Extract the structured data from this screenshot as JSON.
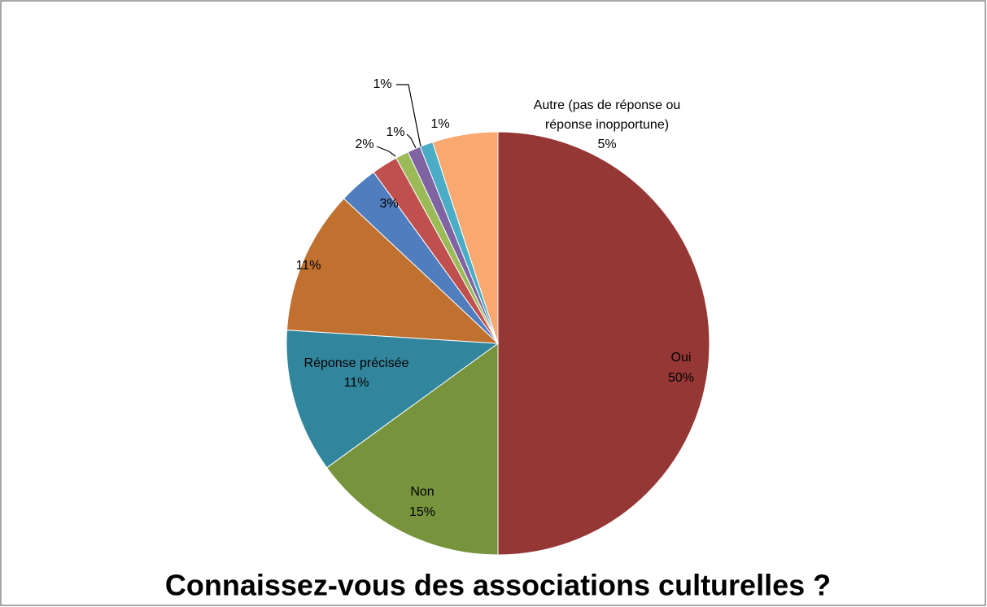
{
  "chart_data": {
    "type": "pie",
    "title": "Connaissez-vous des associations culturelles ?",
    "categories": [
      "Oui",
      "Non",
      "Réponse précisée",
      null,
      null,
      null,
      null,
      null,
      null,
      "Autre (pas de réponse ou réponse inopportune)"
    ],
    "values": [
      50,
      15,
      11,
      11,
      3,
      2,
      1,
      1,
      1,
      5
    ],
    "value_labels": [
      "50%",
      "15%",
      "11%",
      "11%",
      "3%",
      "2%",
      "1%",
      "1%",
      "1%",
      "5%"
    ],
    "colors": [
      "#953735",
      "#77933c",
      "#31859c",
      "#c0702f",
      "#4f7dbd",
      "#c0504d",
      "#9bbb59",
      "#8064a2",
      "#4bacc6",
      "#f9a870"
    ]
  }
}
